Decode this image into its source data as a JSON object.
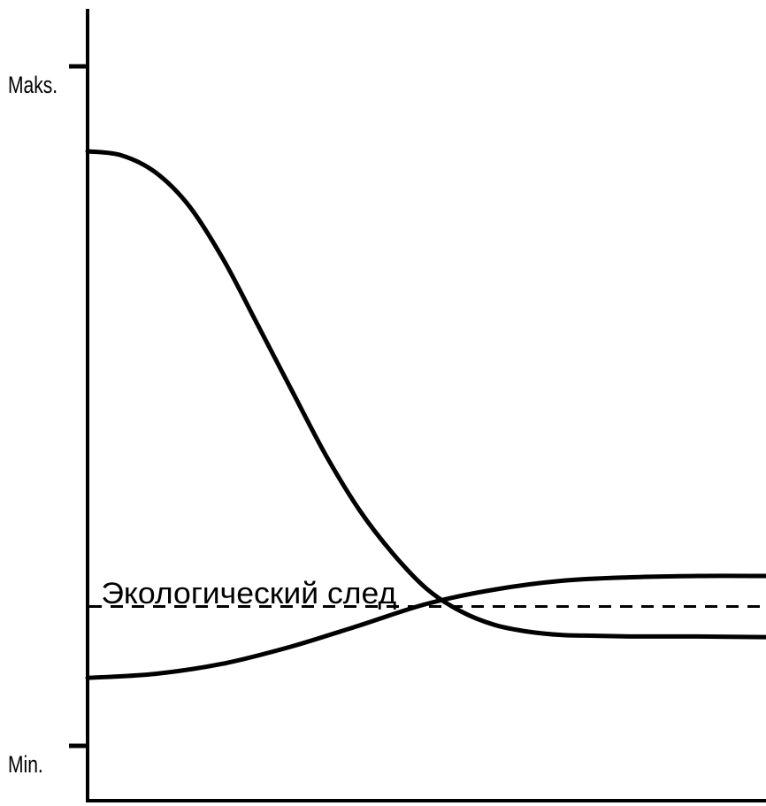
{
  "chart_data": {
    "type": "line",
    "title": "",
    "xlabel": "",
    "ylabel": "",
    "xlim": [
      0,
      100
    ],
    "ylim": [
      0,
      100
    ],
    "grid": false,
    "legend": "none",
    "y_ticks": [
      {
        "value": 100,
        "label": "Maks."
      },
      {
        "value": 0,
        "label": "Min."
      }
    ],
    "series": [
      {
        "x": [
          0,
          5,
          10,
          15,
          20,
          25,
          30,
          35,
          40,
          45,
          50,
          55,
          60,
          65,
          70,
          75,
          80,
          85,
          90,
          100
        ],
        "y": [
          87.5,
          86.9,
          84.4,
          79.4,
          71.6,
          62.1,
          52.5,
          43.0,
          34.8,
          28.3,
          23.1,
          19.8,
          17.8,
          16.8,
          16.3,
          16.2,
          16.1,
          16.1,
          16.1,
          16.0
        ]
      },
      {
        "x": [
          0,
          10,
          20,
          30,
          40,
          50,
          60,
          70,
          80,
          90,
          100
        ],
        "y": [
          10.0,
          10.6,
          12.1,
          14.6,
          17.7,
          20.9,
          23.0,
          24.3,
          24.8,
          25.0,
          25.0
        ]
      }
    ],
    "reference_lines": [
      {
        "y": 20.5,
        "style": "dashed"
      }
    ],
    "annotations": [
      {
        "text": "Экологический след",
        "x": 2,
        "y": 22.5
      }
    ],
    "line_color": "#000000"
  }
}
